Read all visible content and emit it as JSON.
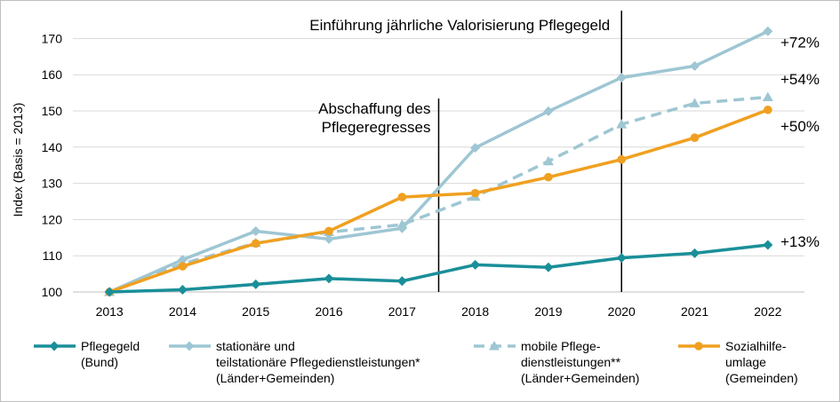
{
  "chart_data": {
    "type": "line",
    "ylabel": "Index (Basis = 2013)",
    "xlabel": "",
    "ylim": [
      100,
      176
    ],
    "yticks": [
      100,
      110,
      120,
      130,
      140,
      150,
      160,
      170
    ],
    "grid": true,
    "categories": [
      "2013",
      "2014",
      "2015",
      "2016",
      "2017",
      "2018",
      "2019",
      "2020",
      "2021",
      "2022"
    ],
    "series": [
      {
        "key": "pflegegeld",
        "name": "Pflegegeld (Bund)",
        "legend_lines": [
          "Pflegegeld",
          "(Bund)"
        ],
        "color": "#1a8f99",
        "dash": false,
        "marker": "diamond",
        "values": [
          100,
          100.6,
          102.1,
          103.7,
          103.0,
          107.5,
          106.8,
          109.4,
          110.7,
          113.0
        ],
        "end_label": "+13%"
      },
      {
        "key": "stationaer",
        "name": "stationäre und teilstationäre Pflegedienstleistungen* (Länder+Gemeinden)",
        "legend_lines": [
          "stationäre und",
          "teilstationäre Pflegedienstleistungen*",
          "(Länder+Gemeinden)"
        ],
        "color": "#9ec6d3",
        "dash": false,
        "marker": "diamond",
        "values": [
          100,
          108.9,
          116.8,
          114.6,
          117.6,
          139.8,
          149.9,
          159.2,
          162.4,
          172.0
        ],
        "end_label": "+72%"
      },
      {
        "key": "mobil",
        "name": "mobile Pflegedienstleistungen** (Länder+Gemeinden)",
        "legend_lines": [
          "mobile Pflege-",
          "dienstleistungen**",
          "(Länder+Gemeinden)"
        ],
        "color": "#9ec6d3",
        "dash": true,
        "marker": "triangle",
        "values": [
          100,
          107.8,
          113.5,
          116.5,
          118.6,
          126.3,
          136.1,
          146.3,
          152.1,
          153.8
        ],
        "end_label": "+54%"
      },
      {
        "key": "sozialhilfe",
        "name": "Sozialhilfeumlage (Gemeinden)",
        "legend_lines": [
          "Sozialhilfe-",
          "umlage",
          "(Gemeinden)"
        ],
        "color": "#f0a020",
        "dash": false,
        "marker": "circle",
        "values": [
          100,
          107.1,
          113.4,
          116.8,
          126.2,
          127.3,
          131.7,
          136.6,
          142.6,
          150.3
        ],
        "end_label": "+50%"
      }
    ],
    "annotations": [
      {
        "key": "valorisierung",
        "lines": [
          "Einführung jährliche Valorisierung Pflegegeld"
        ],
        "x_between": [
          "2019",
          "2020"
        ],
        "position": 1.0
      },
      {
        "key": "regress",
        "lines": [
          "Abschaffung des",
          "Pflegeregresses"
        ],
        "x_between": [
          "2017",
          "2018"
        ],
        "position": 0.5
      }
    ]
  }
}
